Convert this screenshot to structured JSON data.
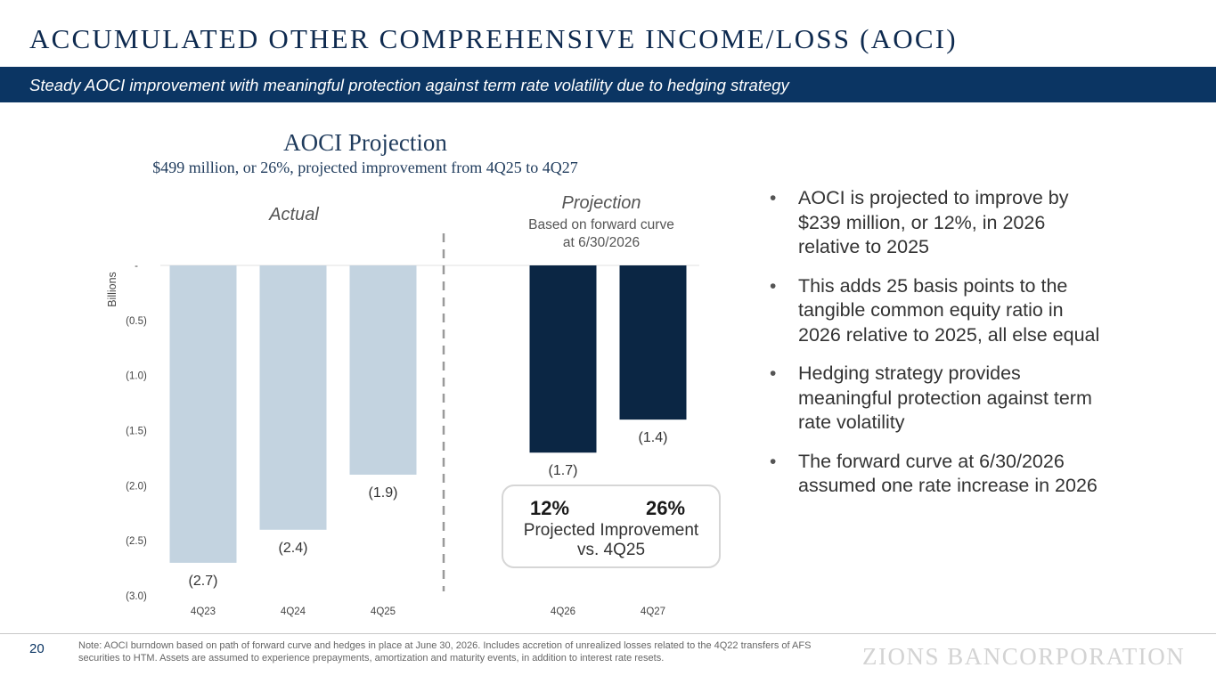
{
  "header": {
    "title": "ACCUMULATED OTHER COMPREHENSIVE INCOME/LOSS (AOCI)",
    "subtitle": "Steady AOCI improvement with meaningful protection against term rate volatility due to hedging strategy"
  },
  "chart_data": {
    "type": "bar",
    "title": "AOCI Projection",
    "subtitle": "$499 million, or 26%, projected improvement from 4Q25 to 4Q27",
    "ylabel": "Billions",
    "ylim": [
      -3.0,
      0
    ],
    "yticks": [
      {
        "value": 0,
        "label": "-"
      },
      {
        "value": -0.5,
        "label": "(0.5)"
      },
      {
        "value": -1.0,
        "label": "(1.0)"
      },
      {
        "value": -1.5,
        "label": "(1.5)"
      },
      {
        "value": -2.0,
        "label": "(2.0)"
      },
      {
        "value": -2.5,
        "label": "(2.5)"
      },
      {
        "value": -3.0,
        "label": "(3.0)"
      }
    ],
    "categories": [
      "4Q23",
      "4Q24",
      "4Q25",
      "4Q26",
      "4Q27"
    ],
    "values": [
      -2.7,
      -2.4,
      -1.9,
      -1.7,
      -1.4
    ],
    "data_labels": [
      "(2.7)",
      "(2.4)",
      "(1.9)",
      "(1.7)",
      "(1.4)"
    ],
    "groups": [
      {
        "label": "Actual",
        "categories": [
          "4Q23",
          "4Q24",
          "4Q25"
        ],
        "color": "#c3d3e0"
      },
      {
        "label": "Projection",
        "note": "Based on forward curve at 6/30/2026",
        "categories": [
          "4Q26",
          "4Q27"
        ],
        "color": "#0b2644"
      }
    ],
    "grid": false
  },
  "callout": {
    "pct_1": "12%",
    "pct_2": "26%",
    "caption_1": "Projected Improvement",
    "caption_2": "vs. 4Q25"
  },
  "bullets": [
    "AOCI is projected to improve by $239 million, or 12%, in 2026 relative to 2025",
    "This adds 25 basis points to the tangible common equity ratio in 2026 relative to 2025, all else equal",
    "Hedging strategy provides meaningful protection against term rate volatility",
    "The forward curve at 6/30/2026 assumed one rate increase in 2026"
  ],
  "bullet_glyph": "•",
  "footer": {
    "page_number": "20",
    "note": "Note: AOCI burndown based on path of forward curve and hedges in place at June 30, 2026. Includes accretion of unrealized losses related to the 4Q22 transfers of AFS securities to HTM. Assets are assumed to experience prepayments, amortization and maturity events, in addition to interest rate resets.",
    "logo": "ZIONS BANCORPORATION"
  }
}
